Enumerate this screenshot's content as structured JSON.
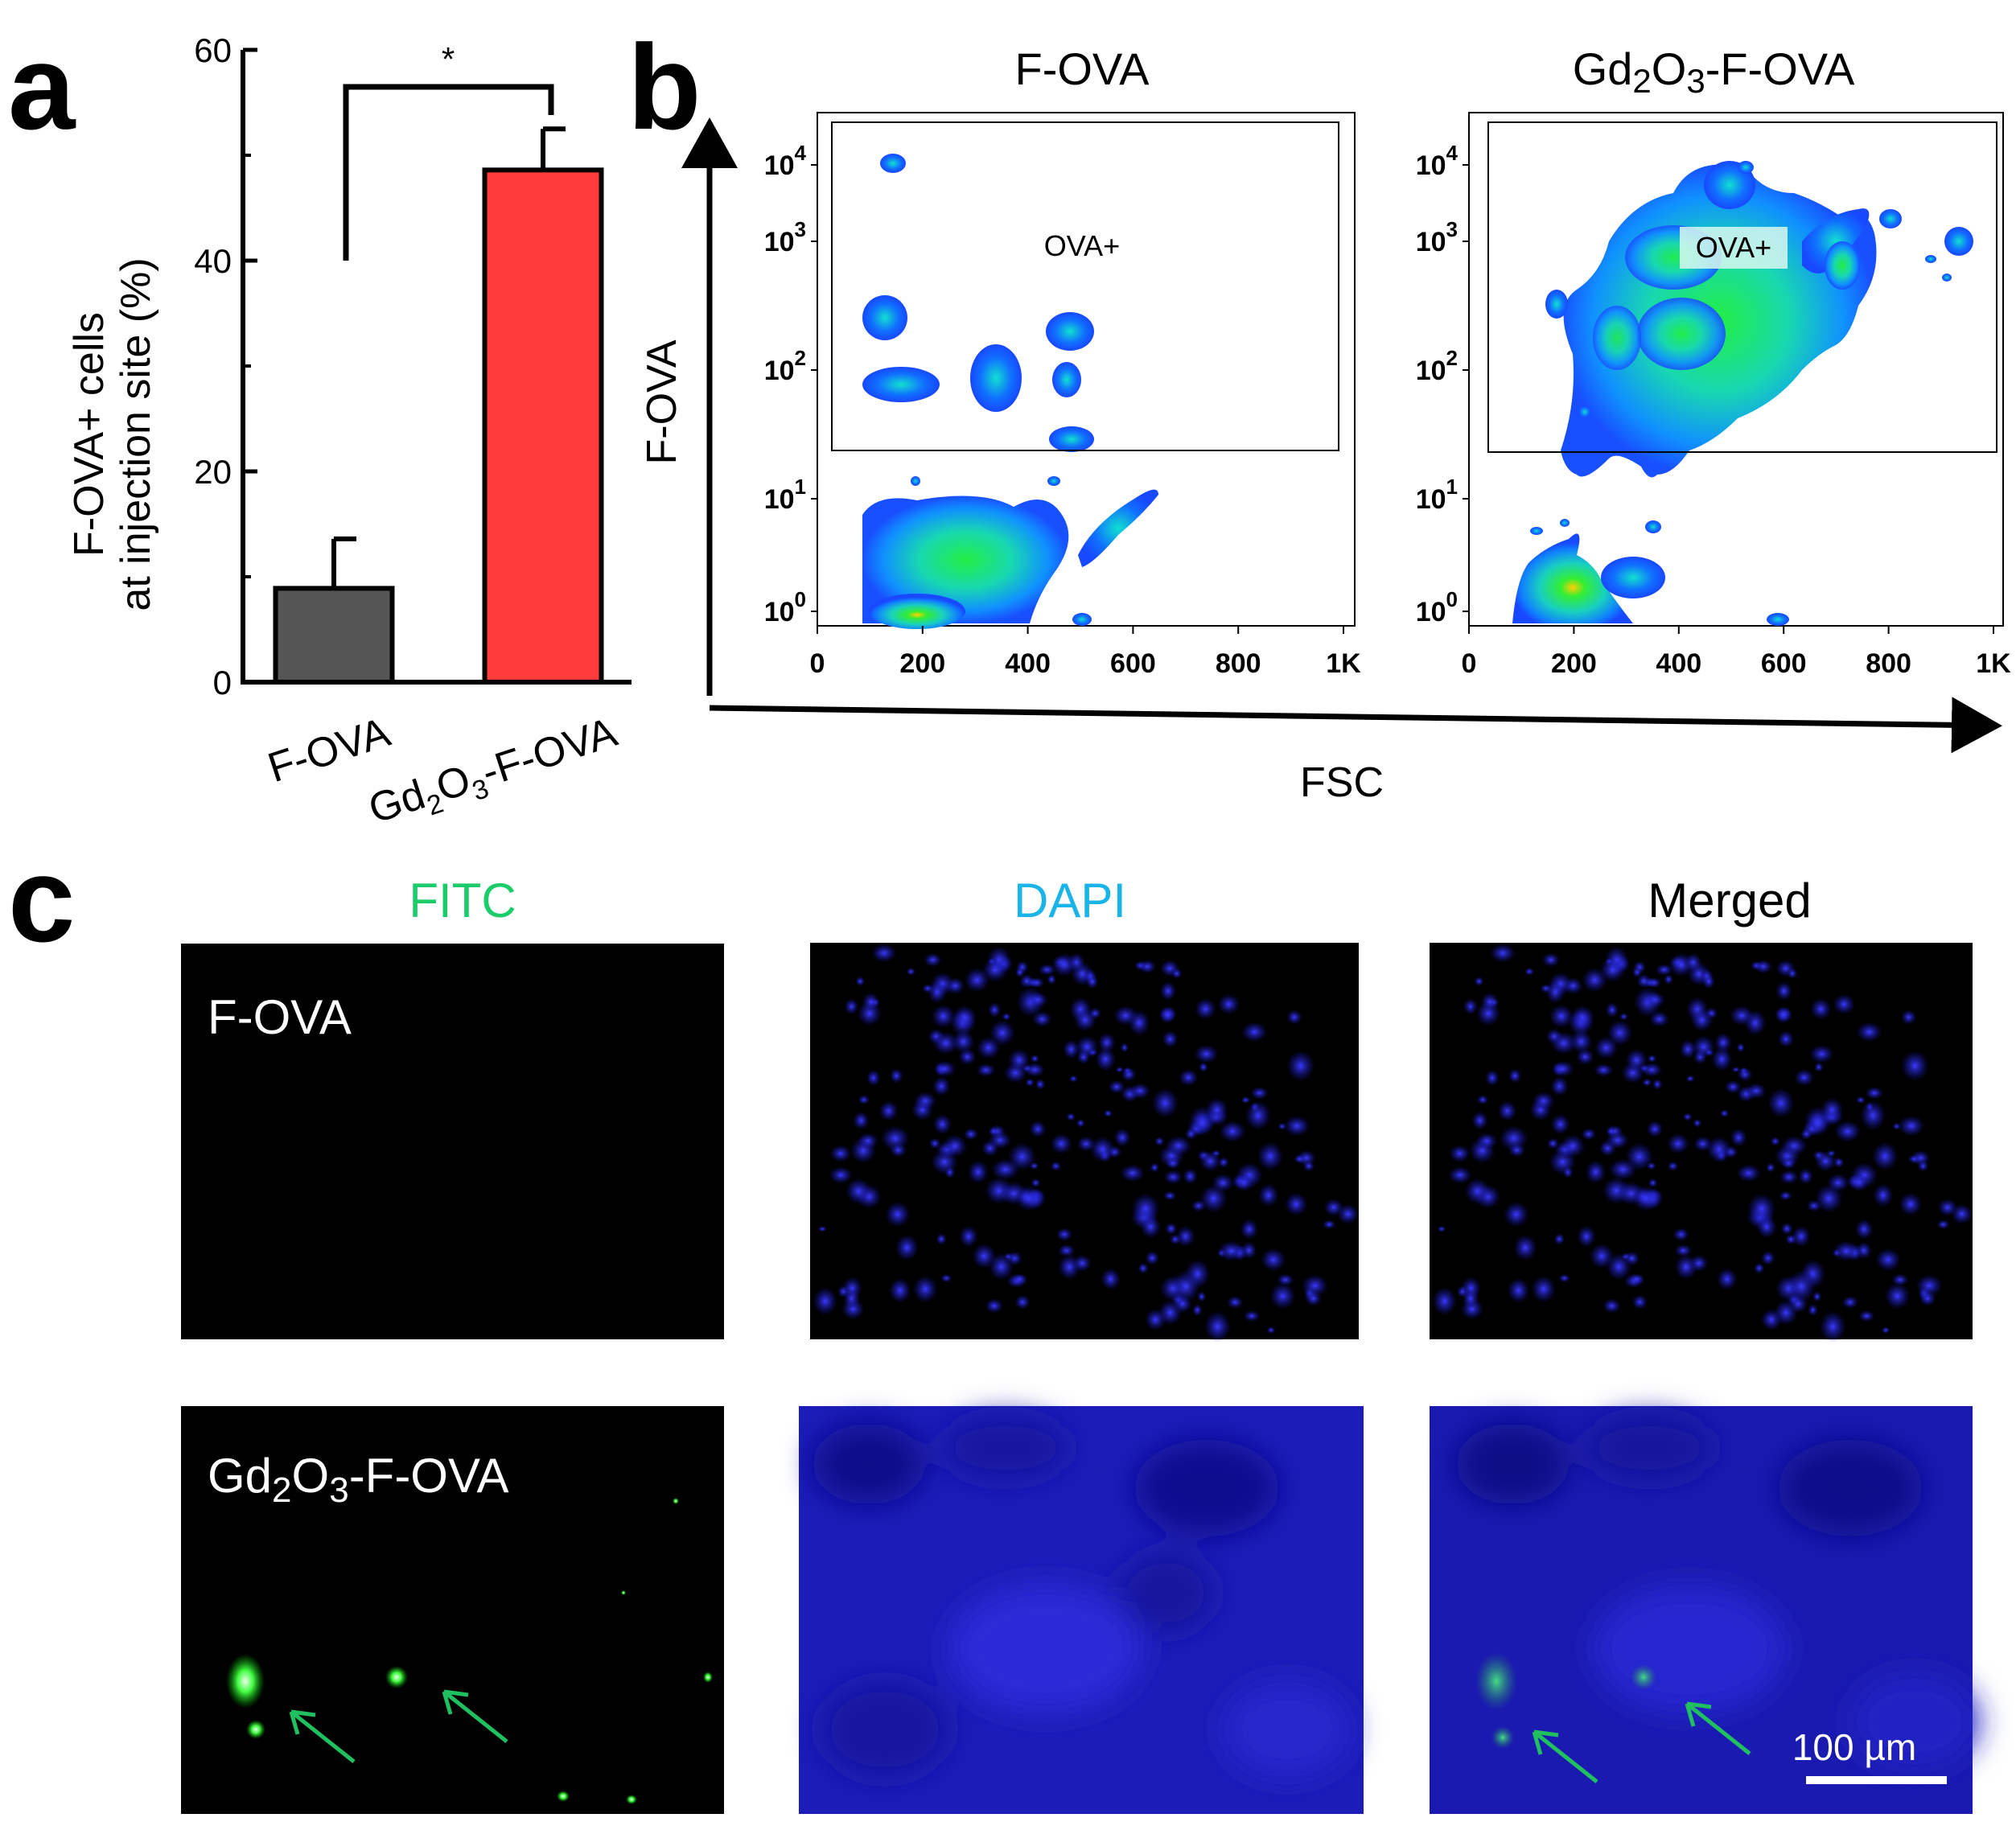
{
  "panels": {
    "a": "a",
    "b": "b",
    "c": "c"
  },
  "chart_data": [
    {
      "type": "bar",
      "categories": [
        "F-OVA",
        "Gd2O3-F-OVA"
      ],
      "category_parts": [
        {
          "main": "F-OVA"
        },
        {
          "a": "Gd",
          "s1": "2",
          "b": "O",
          "s2": "3",
          "c": "-F-OVA"
        }
      ],
      "values": [
        8.9,
        48.6
      ],
      "errors": [
        4.7,
        3.9
      ],
      "colors": [
        "#555555",
        "#ff3b3b"
      ],
      "ylabel_line1": "F-OVA+ cells",
      "ylabel_line2": "at injection site (%)",
      "ylim": [
        0,
        60
      ],
      "yticks": [
        "0",
        "20",
        "40",
        "60"
      ],
      "significance": "*"
    },
    {
      "type": "heatmap",
      "title": "F-OVA",
      "xlabel": "FSC",
      "ylabel": "F-OVA",
      "xticks": [
        "0",
        "200",
        "400",
        "600",
        "800",
        "1K"
      ],
      "yticks": [
        {
          "base": "10",
          "exp": "0"
        },
        {
          "base": "10",
          "exp": "1"
        },
        {
          "base": "10",
          "exp": "2"
        },
        {
          "base": "10",
          "exp": "3"
        },
        {
          "base": "10",
          "exp": "4"
        }
      ],
      "gate": "OVA+"
    },
    {
      "type": "heatmap",
      "title_parts": {
        "a": "Gd",
        "s1": "2",
        "b": "O",
        "s2": "3",
        "c": "-F-OVA"
      },
      "title": "Gd2O3-F-OVA",
      "xticks": [
        "0",
        "200",
        "400",
        "600",
        "800",
        "1K"
      ],
      "yticks": [
        {
          "base": "10",
          "exp": "0"
        },
        {
          "base": "10",
          "exp": "1"
        },
        {
          "base": "10",
          "exp": "2"
        },
        {
          "base": "10",
          "exp": "3"
        },
        {
          "base": "10",
          "exp": "4"
        }
      ],
      "gate": "OVA+"
    }
  ],
  "microscopy": {
    "columns": [
      {
        "label": "FITC",
        "color": "#1ccc6a"
      },
      {
        "label": "DAPI",
        "color": "#1ab4e8"
      },
      {
        "label": "Merged",
        "color": "#000000"
      }
    ],
    "row1_label": "F-OVA",
    "row2_parts": {
      "a": "Gd",
      "s1": "2",
      "b": "O",
      "s2": "3",
      "c": "-F-OVA"
    },
    "scale_bar": "100 µm"
  }
}
